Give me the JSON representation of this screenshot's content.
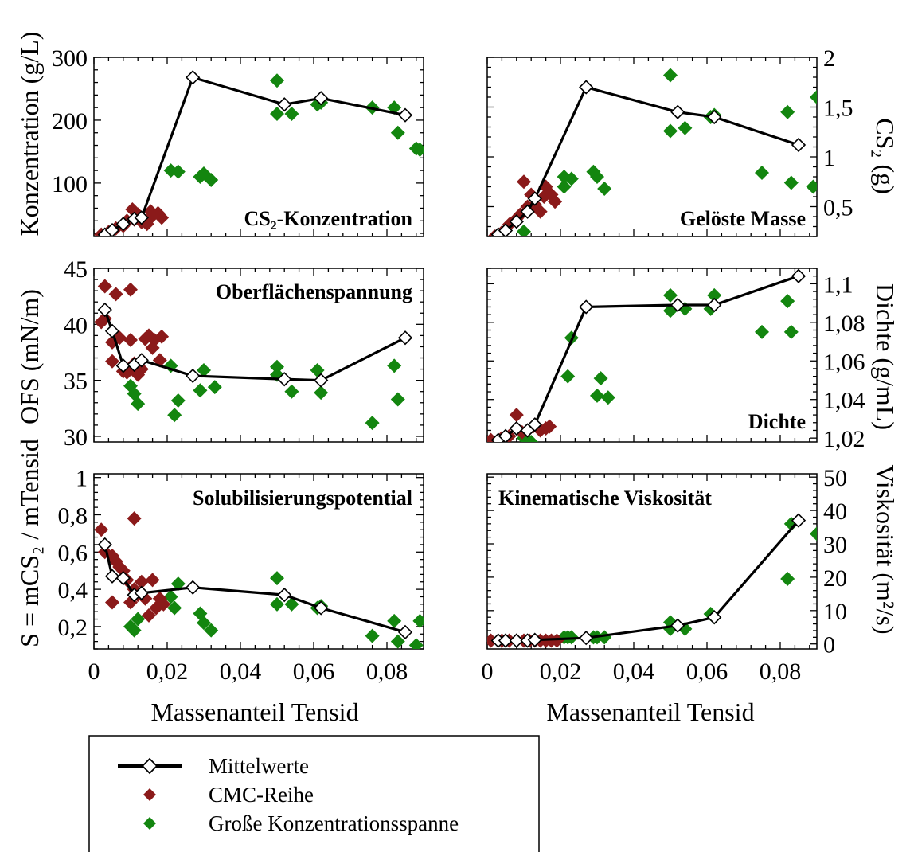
{
  "legend": {
    "mean_label": "Mittelwerte",
    "cmc_label": "CMC-Reihe",
    "range_label": "Große Konzentrationsspanne"
  },
  "colors": {
    "cmc": "#8b1a1a",
    "range": "#13860f",
    "mean_line": "#000000",
    "mean_marker_fill": "#ffffff"
  },
  "chart_data": [
    {
      "id": "konz",
      "type": "scatter",
      "annotation": "CS₂-Konzentration",
      "ylabel": "Konzentration (g/L)",
      "ylabel_side": "left",
      "xlabel": "",
      "xlim": [
        0,
        0.09
      ],
      "ylim": [
        15,
        300
      ],
      "yticks": [
        100,
        200,
        300
      ],
      "ytick_labels": [
        "100",
        "200",
        "300"
      ],
      "xticks": [
        0,
        0.02,
        0.04,
        0.06,
        0.08
      ],
      "xtick_labels": [],
      "series": [
        {
          "name": "Mittelwerte",
          "x": [
            0.003,
            0.005,
            0.008,
            0.011,
            0.013,
            0.027,
            0.052,
            0.062,
            0.085
          ],
          "y": [
            18,
            25,
            35,
            43,
            45,
            268,
            225,
            235,
            208
          ]
        },
        {
          "name": "CMC-Reihe",
          "x": [
            0.002,
            0.004,
            0.006,
            0.008,
            0.009,
            0.0105,
            0.011,
            0.012,
            0.013,
            0.0145,
            0.0155,
            0.016,
            0.0175,
            0.0185
          ],
          "y": [
            18,
            22,
            28,
            32,
            40,
            58,
            42,
            50,
            38,
            35,
            55,
            48,
            52,
            45
          ]
        },
        {
          "name": "Große Konzentrationsspanne",
          "x": [
            0.021,
            0.023,
            0.029,
            0.03,
            0.032,
            0.05,
            0.05,
            0.054,
            0.061,
            0.062,
            0.076,
            0.082,
            0.083,
            0.088,
            0.089
          ],
          "y": [
            120,
            118,
            110,
            115,
            105,
            263,
            210,
            210,
            225,
            228,
            220,
            220,
            180,
            155,
            153
          ]
        }
      ]
    },
    {
      "id": "masse",
      "type": "scatter",
      "annotation": "Gelöste Masse",
      "ylabel": "CS₂ (g)",
      "ylabel_side": "right",
      "xlabel": "",
      "xlim": [
        0,
        0.09
      ],
      "ylim": [
        0.2,
        2.0
      ],
      "yticks": [
        0.5,
        1.0,
        1.5,
        2.0
      ],
      "ytick_labels": [
        "0,5",
        "1",
        "1,5",
        "2"
      ],
      "xticks": [
        0,
        0.02,
        0.04,
        0.06,
        0.08
      ],
      "xtick_labels": [],
      "series": [
        {
          "name": "Mittelwerte",
          "x": [
            0.003,
            0.005,
            0.008,
            0.011,
            0.013,
            0.027,
            0.052,
            0.062,
            0.085
          ],
          "y": [
            0.22,
            0.26,
            0.35,
            0.45,
            0.58,
            1.7,
            1.45,
            1.4,
            1.12
          ]
        },
        {
          "name": "CMC-Reihe",
          "x": [
            0.002,
            0.004,
            0.006,
            0.008,
            0.009,
            0.01,
            0.011,
            0.012,
            0.013,
            0.0145,
            0.0155,
            0.016,
            0.0175,
            0.0185
          ],
          "y": [
            0.2,
            0.24,
            0.32,
            0.38,
            0.42,
            0.75,
            0.5,
            0.62,
            0.52,
            0.45,
            0.6,
            0.7,
            0.62,
            0.55
          ]
        },
        {
          "name": "Große Konzentrationsspanne",
          "x": [
            0.01,
            0.021,
            0.021,
            0.023,
            0.029,
            0.03,
            0.032,
            0.05,
            0.05,
            0.054,
            0.061,
            0.062,
            0.075,
            0.082,
            0.083,
            0.089,
            0.09
          ],
          "y": [
            0.25,
            0.8,
            0.7,
            0.78,
            0.85,
            0.8,
            0.68,
            1.82,
            1.26,
            1.29,
            1.4,
            1.42,
            0.84,
            1.45,
            0.74,
            0.7,
            1.6
          ]
        }
      ]
    },
    {
      "id": "ofs",
      "type": "scatter",
      "annotation": "Oberflächenspannung",
      "ylabel": "OFS (mN/m)",
      "ylabel_side": "left",
      "xlabel": "",
      "xlim": [
        0,
        0.09
      ],
      "ylim": [
        29.5,
        45
      ],
      "yticks": [
        30,
        35,
        40,
        45
      ],
      "ytick_labels": [
        "30",
        "35",
        "40",
        "45"
      ],
      "xticks": [
        0,
        0.02,
        0.04,
        0.06,
        0.08
      ],
      "xtick_labels": [],
      "series": [
        {
          "name": "Mittelwerte",
          "x": [
            0.003,
            0.005,
            0.008,
            0.011,
            0.013,
            0.027,
            0.052,
            0.062,
            0.085
          ],
          "y": [
            41.3,
            39.4,
            36.3,
            36.4,
            36.8,
            35.4,
            35.1,
            35.0,
            38.8
          ]
        },
        {
          "name": "CMC-Reihe",
          "x": [
            0.002,
            0.003,
            0.003,
            0.005,
            0.005,
            0.006,
            0.007,
            0.008,
            0.009,
            0.01,
            0.01,
            0.0105,
            0.011,
            0.012,
            0.013,
            0.014,
            0.015,
            0.016,
            0.0165,
            0.018,
            0.0185
          ],
          "y": [
            40.2,
            43.4,
            40.5,
            38.4,
            36.7,
            42.7,
            38.8,
            35.8,
            35.7,
            43.1,
            38.6,
            36.1,
            36.5,
            35.5,
            36.0,
            38.7,
            39.0,
            37.9,
            38.6,
            36.8,
            38.9
          ]
        },
        {
          "name": "Große Konzentrationsspanne",
          "x": [
            0.01,
            0.011,
            0.012,
            0.021,
            0.022,
            0.023,
            0.029,
            0.03,
            0.033,
            0.05,
            0.05,
            0.054,
            0.061,
            0.062,
            0.076,
            0.082,
            0.083
          ],
          "y": [
            34.5,
            33.8,
            32.9,
            36.3,
            31.9,
            33.2,
            34.1,
            35.9,
            34.4,
            36.2,
            35.5,
            34.0,
            35.9,
            33.9,
            31.2,
            36.3,
            33.3
          ]
        }
      ]
    },
    {
      "id": "dichte",
      "type": "scatter",
      "annotation": "Dichte",
      "ylabel": "Dichte (g/mL)",
      "ylabel_side": "right",
      "xlabel": "",
      "xlim": [
        0,
        0.09
      ],
      "ylim": [
        1.018,
        1.108
      ],
      "yticks": [
        1.02,
        1.04,
        1.06,
        1.08,
        1.1
      ],
      "ytick_labels": [
        "1,02",
        "1,04",
        "1,06",
        "1,08",
        "1,1"
      ],
      "xticks": [
        0,
        0.02,
        0.04,
        0.06,
        0.08
      ],
      "xtick_labels": [],
      "series": [
        {
          "name": "Mittelwerte",
          "x": [
            0.003,
            0.005,
            0.008,
            0.011,
            0.013,
            0.027,
            0.052,
            0.062,
            0.085
          ],
          "y": [
            1.019,
            1.021,
            1.025,
            1.024,
            1.027,
            1.088,
            1.089,
            1.089,
            1.104
          ]
        },
        {
          "name": "CMC-Reihe",
          "x": [
            0.001,
            0.004,
            0.006,
            0.008,
            0.0095,
            0.011,
            0.0125,
            0.013,
            0.0145,
            0.016,
            0.017
          ],
          "y": [
            1.019,
            1.02,
            1.021,
            1.032,
            1.023,
            1.024,
            1.026,
            1.027,
            1.024,
            1.025,
            1.026
          ]
        },
        {
          "name": "Große Konzentrationsspanne",
          "x": [
            0.01,
            0.011,
            0.012,
            0.022,
            0.023,
            0.03,
            0.031,
            0.033,
            0.05,
            0.05,
            0.054,
            0.061,
            0.062,
            0.075,
            0.082,
            0.083
          ],
          "y": [
            1.02,
            1.019,
            1.018,
            1.052,
            1.072,
            1.042,
            1.051,
            1.041,
            1.094,
            1.086,
            1.087,
            1.087,
            1.094,
            1.075,
            1.091,
            1.075
          ]
        }
      ]
    },
    {
      "id": "sol",
      "type": "scatter",
      "annotation": "Solubilisierungspotential",
      "ylabel": "S = mCS₂ / mTensid",
      "ylabel_side": "left",
      "xlabel": "Massenanteil Tensid",
      "xlim": [
        0,
        0.09
      ],
      "ylim": [
        0.08,
        1.02
      ],
      "yticks": [
        0.2,
        0.4,
        0.6,
        0.8,
        1.0
      ],
      "ytick_labels": [
        "0,2",
        "0,4",
        "0,6",
        "0,8",
        "1"
      ],
      "xticks": [
        0,
        0.02,
        0.04,
        0.06,
        0.08
      ],
      "xtick_labels": [
        "0",
        "0,02",
        "0,04",
        "0,06",
        "0,08"
      ],
      "series": [
        {
          "name": "Mittelwerte",
          "x": [
            0.003,
            0.005,
            0.008,
            0.011,
            0.013,
            0.027,
            0.052,
            0.062,
            0.085
          ],
          "y": [
            0.64,
            0.47,
            0.46,
            0.37,
            0.38,
            0.41,
            0.37,
            0.3,
            0.17
          ]
        },
        {
          "name": "CMC-Reihe",
          "x": [
            0.002,
            0.003,
            0.005,
            0.005,
            0.006,
            0.007,
            0.008,
            0.009,
            0.01,
            0.011,
            0.011,
            0.012,
            0.013,
            0.014,
            0.015,
            0.016,
            0.017,
            0.018,
            0.019
          ],
          "y": [
            0.72,
            0.6,
            0.58,
            0.33,
            0.55,
            0.52,
            0.5,
            0.45,
            0.33,
            0.78,
            0.4,
            0.37,
            0.44,
            0.35,
            0.26,
            0.45,
            0.3,
            0.35,
            0.32
          ]
        },
        {
          "name": "Große Konzentrationsspanne",
          "x": [
            0.01,
            0.011,
            0.012,
            0.021,
            0.022,
            0.023,
            0.029,
            0.03,
            0.032,
            0.05,
            0.05,
            0.054,
            0.061,
            0.062,
            0.076,
            0.082,
            0.083,
            0.088,
            0.089
          ],
          "y": [
            0.2,
            0.18,
            0.24,
            0.36,
            0.3,
            0.43,
            0.27,
            0.22,
            0.18,
            0.46,
            0.32,
            0.32,
            0.3,
            0.31,
            0.15,
            0.23,
            0.12,
            0.1,
            0.23
          ]
        }
      ]
    },
    {
      "id": "visk",
      "type": "scatter",
      "annotation": "Kinematische Viskosität",
      "ylabel": "Viskosität (m²/s)",
      "ylabel_side": "right",
      "xlabel": "Massenanteil Tensid",
      "xlim": [
        0,
        0.09
      ],
      "ylim": [
        -1.5,
        51
      ],
      "yticks": [
        0,
        10,
        20,
        30,
        40,
        50
      ],
      "ytick_labels": [
        "0",
        "10",
        "20",
        "30",
        "40",
        "50"
      ],
      "xticks": [
        0,
        0.02,
        0.04,
        0.06,
        0.08
      ],
      "xtick_labels": [
        "0",
        "0,02",
        "0,04",
        "0,06",
        "0,08"
      ],
      "series": [
        {
          "name": "Mittelwerte",
          "x": [
            0.003,
            0.005,
            0.008,
            0.011,
            0.013,
            0.027,
            0.052,
            0.062,
            0.085
          ],
          "y": [
            1.0,
            1.0,
            1.0,
            1.0,
            1.2,
            1.8,
            5.5,
            8.0,
            37.0
          ]
        },
        {
          "name": "CMC-Reihe",
          "x": [
            0.001,
            0.004,
            0.006,
            0.008,
            0.01,
            0.0115,
            0.013,
            0.0145,
            0.016,
            0.0175,
            0.019
          ],
          "y": [
            1.0,
            1.0,
            1.0,
            1.0,
            1.0,
            1.0,
            1.0,
            1.0,
            1.0,
            1.0,
            1.0
          ]
        },
        {
          "name": "Große Konzentrationsspanne",
          "x": [
            0.021,
            0.022,
            0.023,
            0.029,
            0.03,
            0.032,
            0.05,
            0.05,
            0.054,
            0.061,
            0.062,
            0.082,
            0.083,
            0.09
          ],
          "y": [
            2.0,
            2.0,
            2.0,
            2.0,
            2.0,
            2.0,
            6.5,
            4.5,
            4.5,
            9.0,
            8.0,
            19.5,
            36.0,
            33.0
          ]
        }
      ]
    }
  ]
}
